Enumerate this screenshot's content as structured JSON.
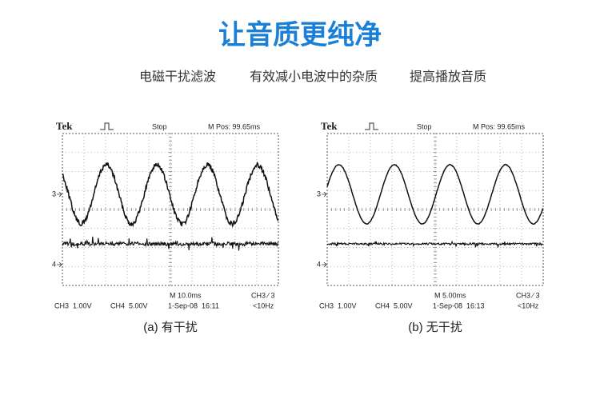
{
  "title": "让音质更纯净",
  "subtitle": [
    "电磁干扰滤波",
    "有效减小电波中的杂质",
    "提高播放音质"
  ],
  "panels": [
    {
      "brand": "Tek",
      "status": "Stop",
      "position": "M Pos: 99.65ms",
      "ch3_marker": "3",
      "ch4_marker": "4",
      "timebase": "M 10.0ms",
      "trigger": "CH3 ∕ 3",
      "ch3_scale": "CH3  1.00V",
      "ch4_scale": "CH4  5.00V",
      "timestamp": "1-Sep-08  16:11",
      "frequency": "<10Hz",
      "caption": "(a) 有干扰"
    },
    {
      "brand": "Tek",
      "status": "Stop",
      "position": "M Pos: 99.65ms",
      "ch3_marker": "3",
      "ch4_marker": "4",
      "timebase": "M 5.00ms",
      "trigger": "CH3 ∕ 3",
      "ch3_scale": "CH3  1.00V",
      "ch4_scale": "CH4  5.00V",
      "timestamp": "1-Sep-08  16:13",
      "frequency": "<10Hz",
      "caption": "(b) 无干扰"
    }
  ]
}
